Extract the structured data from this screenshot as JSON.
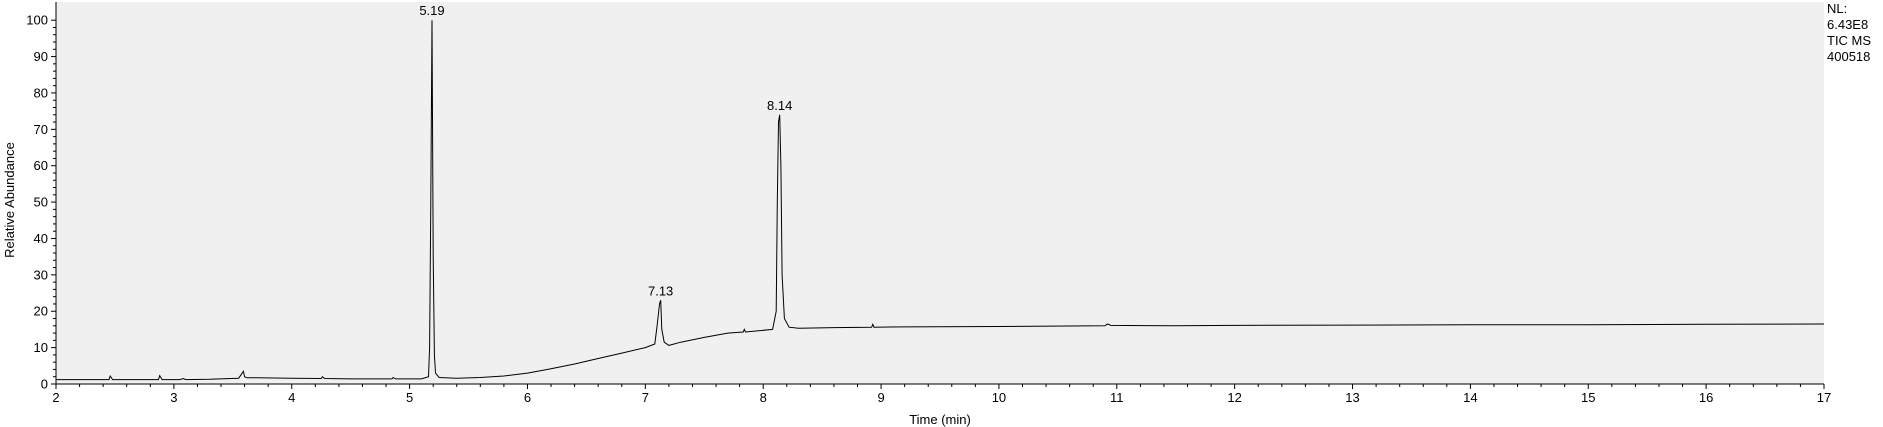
{
  "chart_data": {
    "type": "line",
    "xlabel": "Time (min)",
    "ylabel": "Relative Abundance",
    "xlim": [
      2,
      17
    ],
    "ylim": [
      0,
      105
    ],
    "xticks": [
      2,
      3,
      4,
      5,
      6,
      7,
      8,
      9,
      10,
      11,
      12,
      13,
      14,
      15,
      16,
      17
    ],
    "yticks": [
      0,
      10,
      20,
      30,
      40,
      50,
      60,
      70,
      80,
      90,
      100
    ],
    "grid": false,
    "peak_labels": [
      {
        "time": 5.19,
        "text": "5.19",
        "height": 100
      },
      {
        "time": 7.13,
        "text": "7.13",
        "height": 23
      },
      {
        "time": 8.14,
        "text": "8.14",
        "height": 74
      }
    ],
    "series": [
      {
        "x": [
          2.0,
          2.2,
          2.45,
          2.46,
          2.48,
          2.8,
          2.87,
          2.88,
          2.9,
          3.05,
          3.08,
          3.1,
          3.3,
          3.55,
          3.59,
          3.6,
          3.62,
          3.7,
          4.0,
          4.25,
          4.26,
          4.28,
          4.5,
          4.85,
          4.86,
          4.88,
          5.1,
          5.16,
          5.17,
          5.18,
          5.19,
          5.2,
          5.21,
          5.22,
          5.25,
          5.4,
          5.6,
          5.8,
          6.0,
          6.2,
          6.4,
          6.6,
          6.8,
          7.0,
          7.08,
          7.1,
          7.12,
          7.13,
          7.14,
          7.16,
          7.2,
          7.3,
          7.5,
          7.7,
          7.83,
          7.84,
          7.85,
          7.95,
          8.08,
          8.11,
          8.12,
          8.13,
          8.14,
          8.15,
          8.16,
          8.18,
          8.22,
          8.3,
          8.6,
          8.92,
          8.93,
          8.94,
          9.2,
          10.0,
          10.9,
          10.92,
          10.95,
          11.5,
          12.0,
          13.0,
          14.0,
          15.0,
          16.0,
          17.0
        ],
        "y": [
          1.2,
          1.2,
          1.2,
          2.2,
          1.2,
          1.2,
          1.2,
          2.3,
          1.2,
          1.2,
          1.5,
          1.2,
          1.3,
          1.6,
          3.5,
          2.0,
          1.7,
          1.7,
          1.6,
          1.5,
          2.0,
          1.5,
          1.4,
          1.4,
          1.8,
          1.4,
          1.4,
          2.0,
          10.0,
          50.0,
          100.0,
          35.0,
          8.0,
          3.0,
          1.8,
          1.6,
          1.8,
          2.2,
          3.0,
          4.2,
          5.5,
          7.0,
          8.5,
          10.0,
          11.0,
          16.0,
          22.0,
          23.0,
          15.0,
          11.5,
          10.6,
          11.5,
          12.8,
          14.0,
          14.3,
          15.0,
          14.3,
          14.6,
          15.0,
          20.0,
          50.0,
          72.0,
          74.0,
          60.0,
          30.0,
          18.0,
          15.6,
          15.3,
          15.5,
          15.6,
          16.4,
          15.6,
          15.7,
          15.8,
          16.0,
          16.5,
          16.1,
          16.0,
          16.1,
          16.2,
          16.3,
          16.3,
          16.4,
          16.5
        ]
      }
    ]
  },
  "nl_label": "NL:",
  "nl_value": "6.43E8",
  "scan_filter": "TIC  MS",
  "sample_id": "400518"
}
